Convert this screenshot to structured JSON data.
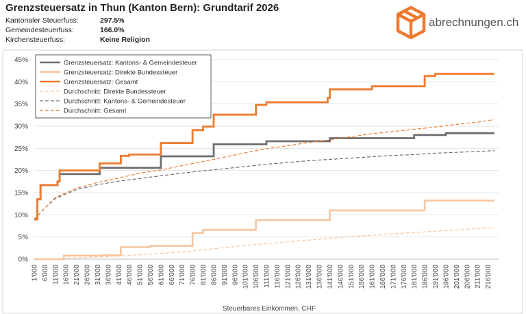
{
  "header": {
    "title": "Grenzsteuersatz in Thun (Kanton Bern): Grundtarif 2026",
    "params": [
      {
        "label": "Kantonaler Steuerfuss:",
        "value": "297.5%"
      },
      {
        "label": "Gemeindesteuerfuss:",
        "value": "166.0%"
      },
      {
        "label": "Kirchensteuerfuss:",
        "value": "Keine Religion"
      }
    ]
  },
  "brand": {
    "name": "abrechnungen.ch",
    "color": "#ee7a2f",
    "icon": "cube-icon"
  },
  "chart_data": {
    "type": "line",
    "title": "",
    "xlabel": "Steuerbares Einkommen, CHF",
    "ylabel": "",
    "xlim": [
      1000,
      221000
    ],
    "ylim": [
      0,
      45
    ],
    "x_ticks": [
      "1'000",
      "6'000",
      "11'000",
      "16'000",
      "21'000",
      "26'000",
      "31'000",
      "36'000",
      "41'000",
      "46'000",
      "51'000",
      "56'000",
      "61'000",
      "66'000",
      "71'000",
      "76'000",
      "81'000",
      "86'000",
      "91'000",
      "96'000",
      "101'000",
      "106'000",
      "111'000",
      "116'000",
      "121'000",
      "126'000",
      "131'000",
      "136'000",
      "141'000",
      "146'000",
      "151'000",
      "156'000",
      "161'000",
      "166'000",
      "171'000",
      "176'000",
      "181'000",
      "186'000",
      "191'000",
      "196'000",
      "201'000",
      "206'000",
      "211'000",
      "216'000"
    ],
    "y_ticks": [
      "0%",
      "5%",
      "10%",
      "15%",
      "20%",
      "25%",
      "30%",
      "35%",
      "40%",
      "45%"
    ],
    "grid": true,
    "legend_position": "top-left",
    "series": [
      {
        "name": "Grenzsteuersatz: Kantons- & Gemeindesteuer",
        "color": "#6e6e6e",
        "style": "solid",
        "step": true,
        "x": [
          1000,
          2500,
          4000,
          6000,
          12000,
          13000,
          31000,
          32000,
          46000,
          61000,
          86000,
          111000,
          141000,
          181000,
          196000,
          219000
        ],
        "y": [
          9.0,
          13.5,
          16.7,
          16.7,
          17.5,
          19.2,
          19.2,
          20.6,
          20.6,
          23.2,
          25.9,
          26.6,
          27.3,
          28.0,
          28.4,
          28.4
        ]
      },
      {
        "name": "Grenzsteuersatz: Direkte Bundessteuer",
        "color": "#f7c59f",
        "style": "solid",
        "step": true,
        "x": [
          1000,
          15000,
          33000,
          42000,
          56000,
          76000,
          81000,
          106000,
          141000,
          186000,
          219000
        ],
        "y": [
          0,
          0.8,
          0.9,
          2.7,
          3.0,
          5.9,
          6.6,
          8.8,
          11.0,
          13.2,
          13.2
        ]
      },
      {
        "name": "Grenzsteuersatz: Gesamt",
        "color": "#ee7a2f",
        "style": "solid",
        "step": true,
        "x": [
          1000,
          2500,
          4000,
          12000,
          13000,
          31000,
          32000,
          42000,
          46000,
          61000,
          76000,
          81000,
          86000,
          106000,
          111000,
          140000,
          141000,
          161000,
          186000,
          191000,
          219000
        ],
        "y": [
          9.0,
          13.5,
          16.7,
          17.5,
          20.0,
          20.0,
          21.6,
          23.3,
          23.6,
          26.2,
          29.1,
          29.9,
          32.6,
          34.8,
          35.4,
          36.4,
          38.3,
          39.0,
          41.3,
          41.8,
          41.8
        ]
      },
      {
        "name": "Durchschnitt: Direkte Bundessteuer",
        "color": "#f7c59f",
        "style": "dashed",
        "x": [
          1000,
          15000,
          21000,
          31000,
          41000,
          51000,
          61000,
          71000,
          81000,
          91000,
          101000,
          111000,
          121000,
          131000,
          141000,
          151000,
          161000,
          171000,
          181000,
          191000,
          201000,
          211000,
          219000
        ],
        "y": [
          0,
          0.1,
          0.3,
          0.5,
          0.7,
          1.0,
          1.3,
          1.6,
          2.1,
          2.6,
          3.1,
          3.5,
          3.9,
          4.3,
          4.7,
          5.1,
          5.4,
          5.7,
          6.0,
          6.3,
          6.6,
          6.9,
          7.1
        ]
      },
      {
        "name": "Durchschnitt: Kantons- & Gemeindesteuer",
        "color": "#6e6e6e",
        "style": "dashed",
        "x": [
          1000,
          6000,
          11000,
          21000,
          31000,
          41000,
          51000,
          61000,
          71000,
          81000,
          91000,
          101000,
          111000,
          121000,
          131000,
          141000,
          151000,
          161000,
          171000,
          181000,
          191000,
          201000,
          211000,
          219000
        ],
        "y": [
          9.0,
          11.5,
          13.7,
          15.7,
          16.8,
          17.6,
          18.2,
          18.8,
          19.4,
          19.9,
          20.4,
          20.9,
          21.4,
          21.8,
          22.2,
          22.5,
          22.8,
          23.1,
          23.4,
          23.6,
          23.9,
          24.1,
          24.3,
          24.5
        ]
      },
      {
        "name": "Durchschnitt: Gesamt",
        "color": "#ee7a2f",
        "style": "dashed",
        "x": [
          1000,
          6000,
          11000,
          21000,
          31000,
          41000,
          51000,
          61000,
          71000,
          81000,
          91000,
          101000,
          111000,
          121000,
          131000,
          141000,
          151000,
          161000,
          171000,
          181000,
          191000,
          201000,
          211000,
          219000
        ],
        "y": [
          9.0,
          11.5,
          13.9,
          16.0,
          17.3,
          18.3,
          19.4,
          20.1,
          21.1,
          22.0,
          23.0,
          24.0,
          24.9,
          25.6,
          26.3,
          26.9,
          27.6,
          28.3,
          28.8,
          29.3,
          29.8,
          30.4,
          30.9,
          31.5
        ]
      }
    ]
  }
}
